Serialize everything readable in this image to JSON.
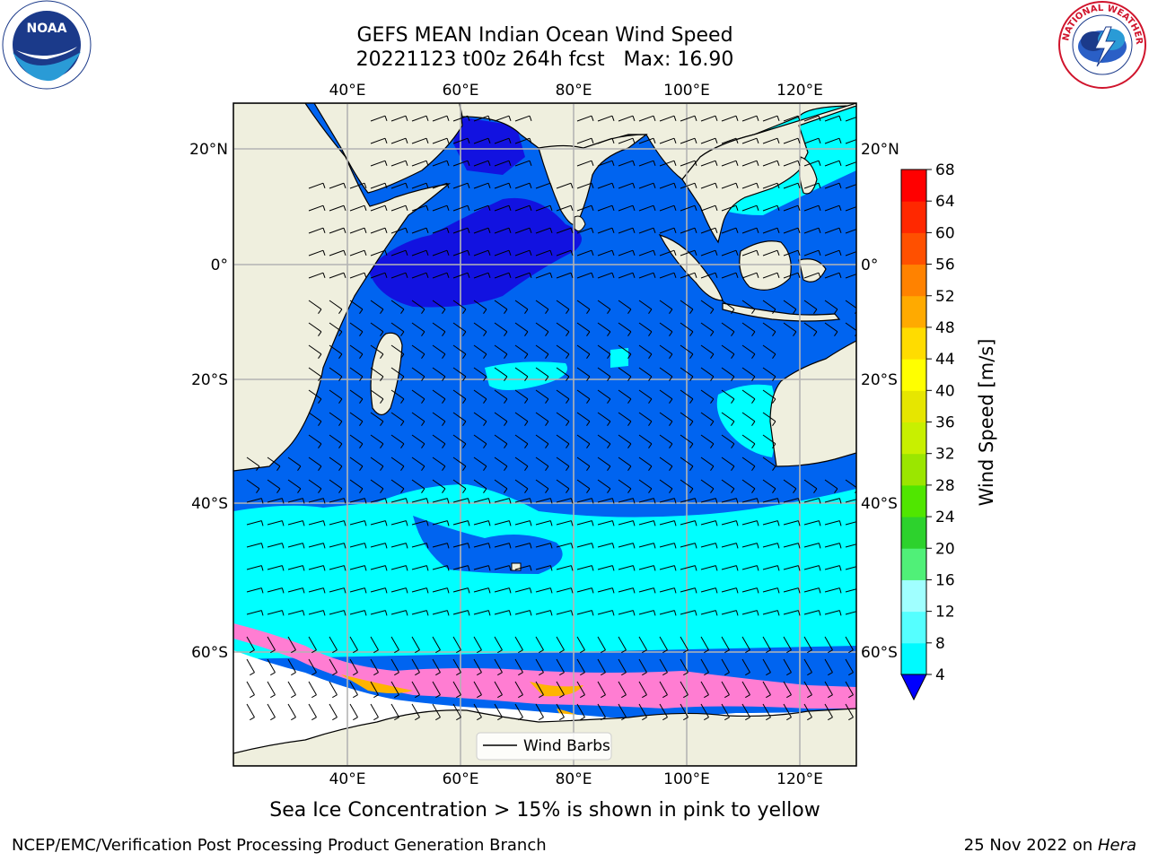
{
  "title": {
    "line1": "GEFS MEAN Indian Ocean Wind Speed",
    "line2": "20221123 t00z 264h fcst   Max: 16.90"
  },
  "axes": {
    "lon_labels": [
      "40°E",
      "60°E",
      "80°E",
      "100°E",
      "120°E"
    ],
    "lat_labels": [
      "20°N",
      "0°",
      "20°S",
      "40°S",
      "60°S"
    ]
  },
  "legend": {
    "wind_barbs": "Wind Barbs"
  },
  "colorbar": {
    "label": "Wind Speed [m/s]",
    "ticks": [
      "4",
      "8",
      "12",
      "16",
      "20",
      "24",
      "28",
      "32",
      "36",
      "40",
      "44",
      "48",
      "52",
      "56",
      "60",
      "64",
      "68"
    ],
    "colors": [
      "#0064f0",
      "#00e6ff",
      "#00faff",
      "#55ffff",
      "#a0ffff",
      "#50f078",
      "#2dd22d",
      "#50e600",
      "#9be600",
      "#c8f000",
      "#e6e600",
      "#ffff00",
      "#ffdc00",
      "#ffaa00",
      "#ff8200",
      "#ff5000",
      "#ff2800",
      "#ff0000"
    ],
    "under_color": "#0000ff"
  },
  "colors": {
    "land": "#efefde",
    "ocean_blue": "#0064f0",
    "ocean_dark": "#1212e0",
    "ocean_cyan": "#00ffff",
    "ocean_light": "#55ffff",
    "sea_ice": "#ff7dd2",
    "grid": "#b4b4b4"
  },
  "bottom_caption": "Sea Ice Concentration > 15% is shown in pink to yellow",
  "footer": {
    "left": "NCEP/EMC/Verification Post Processing Product Generation Branch",
    "right_prefix": "25 Nov 2022 on ",
    "right_host": "Hera"
  },
  "logos": {
    "noaa": "noaa-logo",
    "nws": "nws-logo"
  }
}
